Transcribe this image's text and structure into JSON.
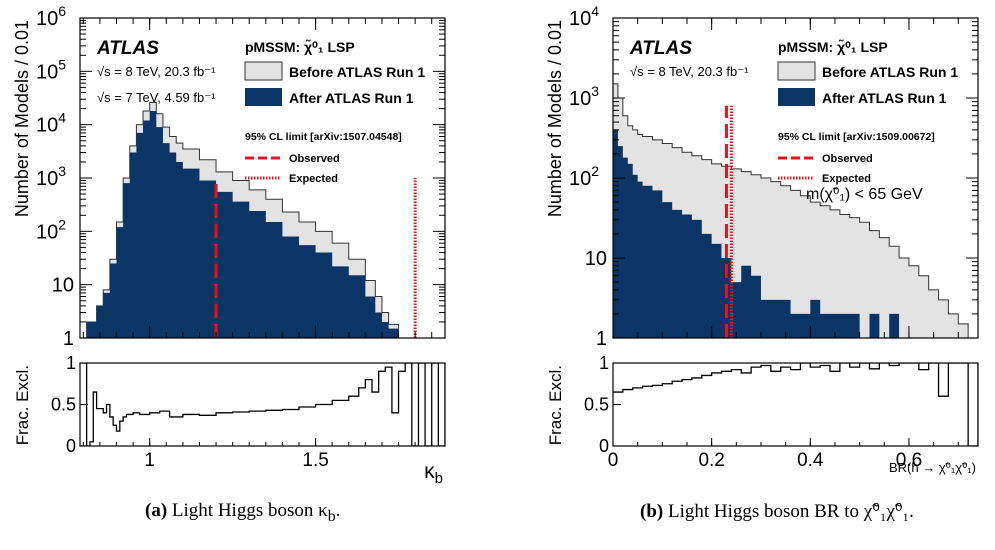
{
  "colors": {
    "before": "#e3e3e3",
    "after": "#0b3566",
    "observed": "#e8111b",
    "expected": "#e8111b",
    "frame": "#000000"
  },
  "captions": [
    {
      "label": "(a)",
      "text": "Light Higgs boson κ",
      "sub": "b",
      "suffix": "."
    },
    {
      "label": "(b)",
      "text": "Light Higgs boson BR to χ̃⁰₁χ̃⁰₁."
    }
  ],
  "chart_data": [
    {
      "type": "area",
      "ylabel": "Number of Models / 0.01",
      "ratio_ylabel": "Frac. Excl.",
      "xlabel": "κ",
      "xlabel_sub": "b",
      "yscale": "log",
      "ylim": [
        1,
        1000000
      ],
      "xlim": [
        0.79,
        1.89
      ],
      "x_ticks": [
        "1",
        "1.5"
      ],
      "y_ticks": [
        "1",
        "10",
        "10²",
        "10³",
        "10⁴",
        "10⁵",
        "10⁶"
      ],
      "ratio_ylim": [
        0,
        1
      ],
      "ratio_ticks": [
        "0",
        "0.5",
        "1"
      ],
      "atlas_label": "ATLAS",
      "energy_lines": [
        {
          "text": "√s = 8 TeV, 20.3 fb⁻¹"
        },
        {
          "text": "√s = 7 TeV, 4.59 fb⁻¹"
        }
      ],
      "model_label": "pMSSM: χ̃⁰₁ LSP",
      "limit_ref": "95% CL limit [arXiv:1507.04548]",
      "legend": [
        "Before ATLAS Run 1",
        "After ATLAS Run 1",
        "Observed",
        "Expected"
      ],
      "observed_x": 1.2,
      "observed_y_top": 1000,
      "expected_x": 1.8,
      "expected_y_top": 1000,
      "series": [
        {
          "name": "Before ATLAS Run 1",
          "points": [
            [
              0.81,
              2
            ],
            [
              0.84,
              4
            ],
            [
              0.86,
              8
            ],
            [
              0.88,
              30
            ],
            [
              0.9,
              150
            ],
            [
              0.92,
              1000
            ],
            [
              0.94,
              4000
            ],
            [
              0.96,
              10000
            ],
            [
              0.98,
              18000
            ],
            [
              1.0,
              26000
            ],
            [
              1.02,
              16000
            ],
            [
              1.04,
              9000
            ],
            [
              1.06,
              6000
            ],
            [
              1.08,
              4500
            ],
            [
              1.1,
              3500
            ],
            [
              1.15,
              2200
            ],
            [
              1.2,
              1300
            ],
            [
              1.25,
              900
            ],
            [
              1.3,
              600
            ],
            [
              1.35,
              400
            ],
            [
              1.4,
              230
            ],
            [
              1.45,
              150
            ],
            [
              1.5,
              100
            ],
            [
              1.55,
              60
            ],
            [
              1.6,
              30
            ],
            [
              1.65,
              12
            ],
            [
              1.68,
              6
            ],
            [
              1.7,
              3
            ],
            [
              1.72,
              1.8
            ],
            [
              1.75,
              1
            ]
          ]
        },
        {
          "name": "After ATLAS Run 1",
          "points": [
            [
              0.81,
              2
            ],
            [
              0.84,
              4
            ],
            [
              0.86,
              7
            ],
            [
              0.88,
              25
            ],
            [
              0.9,
              120
            ],
            [
              0.92,
              800
            ],
            [
              0.94,
              3000
            ],
            [
              0.96,
              7000
            ],
            [
              0.98,
              12000
            ],
            [
              1.0,
              18000
            ],
            [
              1.02,
              9000
            ],
            [
              1.04,
              4500
            ],
            [
              1.06,
              3000
            ],
            [
              1.08,
              2000
            ],
            [
              1.1,
              1500
            ],
            [
              1.15,
              900
            ],
            [
              1.2,
              550
            ],
            [
              1.25,
              360
            ],
            [
              1.3,
              240
            ],
            [
              1.35,
              150
            ],
            [
              1.4,
              80
            ],
            [
              1.45,
              55
            ],
            [
              1.5,
              40
            ],
            [
              1.55,
              22
            ],
            [
              1.6,
              15
            ],
            [
              1.65,
              6
            ],
            [
              1.68,
              3
            ],
            [
              1.7,
              2
            ],
            [
              1.72,
              1.5
            ],
            [
              1.75,
              1
            ]
          ]
        }
      ],
      "ratio": [
        [
          0.8,
          1.0
        ],
        [
          0.81,
          0.0
        ],
        [
          0.82,
          0.05
        ],
        [
          0.83,
          0.65
        ],
        [
          0.84,
          0.45
        ],
        [
          0.85,
          0.45
        ],
        [
          0.86,
          0.4
        ],
        [
          0.87,
          0.5
        ],
        [
          0.88,
          0.35
        ],
        [
          0.89,
          0.25
        ],
        [
          0.9,
          0.18
        ],
        [
          0.91,
          0.3
        ],
        [
          0.92,
          0.35
        ],
        [
          0.93,
          0.38
        ],
        [
          0.95,
          0.4
        ],
        [
          0.97,
          0.38
        ],
        [
          1.0,
          0.4
        ],
        [
          1.03,
          0.42
        ],
        [
          1.06,
          0.35
        ],
        [
          1.1,
          0.38
        ],
        [
          1.15,
          0.37
        ],
        [
          1.2,
          0.4
        ],
        [
          1.25,
          0.41
        ],
        [
          1.3,
          0.42
        ],
        [
          1.35,
          0.43
        ],
        [
          1.4,
          0.44
        ],
        [
          1.45,
          0.47
        ],
        [
          1.5,
          0.5
        ],
        [
          1.55,
          0.55
        ],
        [
          1.6,
          0.6
        ],
        [
          1.63,
          0.7
        ],
        [
          1.65,
          0.8
        ],
        [
          1.67,
          0.65
        ],
        [
          1.69,
          0.9
        ],
        [
          1.71,
          0.95
        ],
        [
          1.73,
          0.4
        ],
        [
          1.75,
          0.9
        ],
        [
          1.77,
          1.0
        ],
        [
          1.79,
          0.0
        ],
        [
          1.81,
          1.0
        ],
        [
          1.83,
          0.0
        ],
        [
          1.85,
          1.0
        ],
        [
          1.87,
          0.0
        ],
        [
          1.89,
          1.0
        ]
      ]
    },
    {
      "type": "area",
      "ylabel": "Number of Models / 0.01",
      "ratio_ylabel": "Frac. Excl.",
      "xlabel": "BR(h → χ̃⁰₁χ̃⁰₁)",
      "yscale": "log",
      "ylim": [
        1,
        10000
      ],
      "xlim": [
        0,
        0.74
      ],
      "x_ticks": [
        "0",
        "0.2",
        "0.4",
        "0.6"
      ],
      "y_ticks": [
        "1",
        "10",
        "10²",
        "10³",
        "10⁴"
      ],
      "ratio_ylim": [
        0,
        1
      ],
      "ratio_ticks": [
        "0",
        "0.5",
        "1"
      ],
      "atlas_label": "ATLAS",
      "energy_lines": [
        {
          "text": "√s = 8 TeV, 20.3 fb⁻¹"
        }
      ],
      "model_label": "pMSSM: χ̃⁰₁ LSP",
      "limit_ref": "95% CL limit [arXiv:1509.00672]",
      "legend": [
        "Before ATLAS Run 1",
        "After ATLAS Run 1",
        "Observed",
        "Expected"
      ],
      "annotation": "m(χ̃⁰₁) < 65 GeV",
      "observed_x": 0.23,
      "observed_y_top": 800,
      "expected_x": 0.24,
      "expected_y_top": 800,
      "series": [
        {
          "name": "Before ATLAS Run 1",
          "points": [
            [
              0.0,
              1500
            ],
            [
              0.01,
              1000
            ],
            [
              0.02,
              600
            ],
            [
              0.03,
              450
            ],
            [
              0.04,
              400
            ],
            [
              0.05,
              350
            ],
            [
              0.06,
              330
            ],
            [
              0.08,
              300
            ],
            [
              0.1,
              270
            ],
            [
              0.12,
              240
            ],
            [
              0.14,
              210
            ],
            [
              0.16,
              190
            ],
            [
              0.18,
              170
            ],
            [
              0.2,
              150
            ],
            [
              0.22,
              140
            ],
            [
              0.24,
              130
            ],
            [
              0.26,
              120
            ],
            [
              0.28,
              110
            ],
            [
              0.3,
              100
            ],
            [
              0.32,
              90
            ],
            [
              0.34,
              80
            ],
            [
              0.36,
              70
            ],
            [
              0.38,
              60
            ],
            [
              0.4,
              50
            ],
            [
              0.42,
              45
            ],
            [
              0.44,
              40
            ],
            [
              0.46,
              35
            ],
            [
              0.48,
              32
            ],
            [
              0.5,
              28
            ],
            [
              0.52,
              22
            ],
            [
              0.54,
              18
            ],
            [
              0.56,
              14
            ],
            [
              0.58,
              10
            ],
            [
              0.6,
              8
            ],
            [
              0.62,
              6
            ],
            [
              0.64,
              4
            ],
            [
              0.66,
              3
            ],
            [
              0.68,
              2
            ],
            [
              0.7,
              1.5
            ],
            [
              0.72,
              1
            ]
          ]
        },
        {
          "name": "After ATLAS Run 1",
          "points": [
            [
              0.0,
              400
            ],
            [
              0.01,
              250
            ],
            [
              0.02,
              180
            ],
            [
              0.03,
              150
            ],
            [
              0.04,
              110
            ],
            [
              0.05,
              90
            ],
            [
              0.06,
              80
            ],
            [
              0.08,
              70
            ],
            [
              0.1,
              50
            ],
            [
              0.12,
              40
            ],
            [
              0.14,
              35
            ],
            [
              0.16,
              30
            ],
            [
              0.18,
              20
            ],
            [
              0.2,
              15
            ],
            [
              0.22,
              10
            ],
            [
              0.24,
              5
            ],
            [
              0.26,
              8
            ],
            [
              0.28,
              6
            ],
            [
              0.3,
              3
            ],
            [
              0.32,
              3
            ],
            [
              0.34,
              3
            ],
            [
              0.36,
              2
            ],
            [
              0.38,
              2
            ],
            [
              0.4,
              3
            ],
            [
              0.42,
              2
            ],
            [
              0.44,
              2
            ],
            [
              0.46,
              2
            ],
            [
              0.48,
              2
            ],
            [
              0.5,
              1
            ],
            [
              0.52,
              2
            ],
            [
              0.54,
              1
            ],
            [
              0.56,
              2
            ],
            [
              0.58,
              1
            ],
            [
              0.6,
              1
            ],
            [
              0.62,
              1
            ],
            [
              0.64,
              1
            ],
            [
              0.66,
              1
            ],
            [
              0.68,
              1
            ],
            [
              0.7,
              1
            ],
            [
              0.72,
              1
            ]
          ]
        }
      ],
      "ratio": [
        [
          0.0,
          0.65
        ],
        [
          0.02,
          0.68
        ],
        [
          0.04,
          0.7
        ],
        [
          0.06,
          0.72
        ],
        [
          0.08,
          0.73
        ],
        [
          0.1,
          0.75
        ],
        [
          0.12,
          0.78
        ],
        [
          0.14,
          0.8
        ],
        [
          0.16,
          0.82
        ],
        [
          0.18,
          0.85
        ],
        [
          0.2,
          0.88
        ],
        [
          0.22,
          0.9
        ],
        [
          0.24,
          0.92
        ],
        [
          0.26,
          0.88
        ],
        [
          0.28,
          0.95
        ],
        [
          0.3,
          0.97
        ],
        [
          0.32,
          0.9
        ],
        [
          0.34,
          0.95
        ],
        [
          0.36,
          0.92
        ],
        [
          0.38,
          1.0
        ],
        [
          0.4,
          0.95
        ],
        [
          0.42,
          0.97
        ],
        [
          0.44,
          0.9
        ],
        [
          0.46,
          1.0
        ],
        [
          0.48,
          0.95
        ],
        [
          0.5,
          1.0
        ],
        [
          0.52,
          0.93
        ],
        [
          0.54,
          1.0
        ],
        [
          0.56,
          0.97
        ],
        [
          0.58,
          1.0
        ],
        [
          0.6,
          1.0
        ],
        [
          0.62,
          0.92
        ],
        [
          0.64,
          1.0
        ],
        [
          0.66,
          0.6
        ],
        [
          0.68,
          1.0
        ],
        [
          0.7,
          1.0
        ],
        [
          0.72,
          0.0
        ],
        [
          0.74,
          1.0
        ]
      ]
    }
  ]
}
